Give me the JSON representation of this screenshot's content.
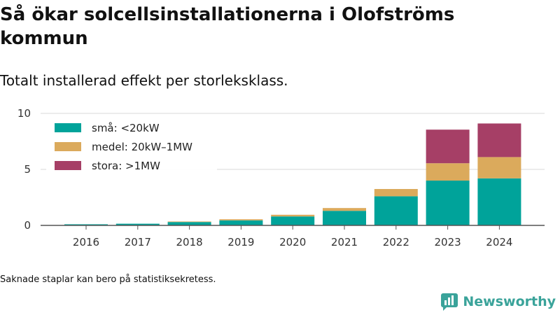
{
  "title": "Så ökar solcellsinstallationerna i Olofströms kommun",
  "subtitle": "Totalt installerad effekt per storleksklass.",
  "footnote": "Saknade staplar kan bero på statistiksekretess.",
  "brand": {
    "name": "Newsworthy",
    "icon": "newsworthy-logo-icon",
    "color": "#3aa39a"
  },
  "chart_data": {
    "type": "bar",
    "stacked": true,
    "categories": [
      "2016",
      "2017",
      "2018",
      "2019",
      "2020",
      "2021",
      "2022",
      "2023",
      "2024"
    ],
    "series": [
      {
        "name": "små: <20kW",
        "color": "#00a39a",
        "values": [
          0.1,
          0.15,
          0.3,
          0.45,
          0.8,
          1.3,
          2.6,
          4.0,
          4.2
        ]
      },
      {
        "name": "medel: 20kW–1MW",
        "color": "#dbaa5c",
        "values": [
          0.0,
          0.0,
          0.05,
          0.1,
          0.15,
          0.25,
          0.65,
          1.55,
          1.9
        ]
      },
      {
        "name": "stora: >1MW",
        "color": "#a63f66",
        "values": [
          0.0,
          0.0,
          0.0,
          0.0,
          0.0,
          0.0,
          0.0,
          3.0,
          3.0
        ]
      }
    ],
    "ylim": [
      0,
      10
    ],
    "yticks": [
      0,
      5,
      10
    ],
    "grid": true,
    "legend_position": "top-left"
  }
}
